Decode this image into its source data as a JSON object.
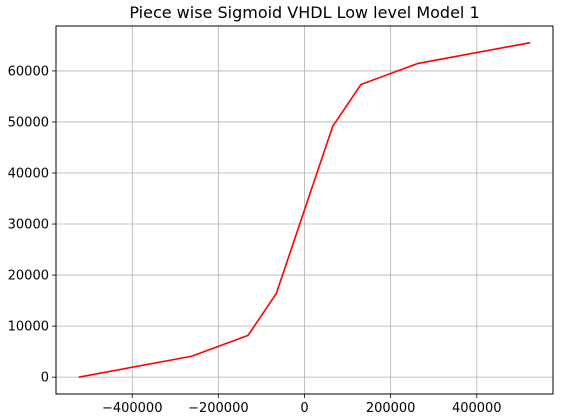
{
  "chart_data": {
    "type": "line",
    "title": "Piece wise Sigmoid VHDL Low level Model 1",
    "xlabel": "",
    "ylabel": "",
    "xlim": [
      -577000,
      577000
    ],
    "ylim": [
      -3300,
      68800
    ],
    "grid": true,
    "x_ticks": [
      {
        "value": -400000,
        "label": "−400000"
      },
      {
        "value": -200000,
        "label": "−200000"
      },
      {
        "value": 0,
        "label": "0"
      },
      {
        "value": 200000,
        "label": "200000"
      },
      {
        "value": 400000,
        "label": "400000"
      }
    ],
    "y_ticks": [
      {
        "value": 0,
        "label": "0"
      },
      {
        "value": 10000,
        "label": "10000"
      },
      {
        "value": 20000,
        "label": "20000"
      },
      {
        "value": 30000,
        "label": "30000"
      },
      {
        "value": 40000,
        "label": "40000"
      },
      {
        "value": 50000,
        "label": "50000"
      },
      {
        "value": 60000,
        "label": "60000"
      }
    ],
    "series": [
      {
        "color": "#ff0000",
        "points": [
          [
            -524288,
            0
          ],
          [
            -262144,
            4096
          ],
          [
            -131072,
            8192
          ],
          [
            -65536,
            16384
          ],
          [
            0,
            32768
          ],
          [
            65536,
            49152
          ],
          [
            131072,
            57344
          ],
          [
            262144,
            61440
          ],
          [
            524288,
            65536
          ]
        ]
      }
    ]
  }
}
